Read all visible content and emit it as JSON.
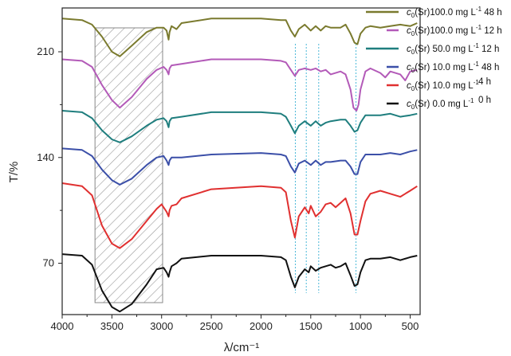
{
  "chart_data": {
    "type": "line",
    "xlabel": "λ/cm⁻¹",
    "ylabel": "T/%",
    "xlim": [
      4000,
      400
    ],
    "ylim": [
      36,
      239
    ],
    "x_ticks": [
      {
        "value": 4000,
        "label": "4000"
      },
      {
        "value": 3500,
        "label": "3500"
      },
      {
        "value": 3000,
        "label": "3000"
      },
      {
        "value": 2500,
        "label": "2500"
      },
      {
        "value": 2000,
        "label": "2000"
      },
      {
        "value": 1500,
        "label": "1500"
      },
      {
        "value": 1000,
        "label": "1000"
      },
      {
        "value": 500,
        "label": "500"
      }
    ],
    "y_ticks": [
      {
        "value": 70,
        "label": "70"
      },
      {
        "value": 140,
        "label": "140"
      },
      {
        "value": 210,
        "label": "210"
      }
    ],
    "hatched_region": {
      "x_from": 3670,
      "x_to": 2990
    },
    "dotted_lines": [
      1655,
      1545,
      1420,
      1045
    ],
    "series": [
      {
        "name": "c0(Sr)100.0 mg L-1 48 h",
        "legend": {
          "label": "(Sr)100.0 mg L",
          "unit_tail": " 48 h",
          "time": ""
        },
        "color": "#7a7a2e",
        "offset": 232,
        "points": [
          [
            4000,
            0
          ],
          [
            3800,
            -1
          ],
          [
            3700,
            -4
          ],
          [
            3600,
            -12
          ],
          [
            3500,
            -22
          ],
          [
            3420,
            -25
          ],
          [
            3300,
            -18
          ],
          [
            3150,
            -9
          ],
          [
            3050,
            -6
          ],
          [
            2980,
            -6
          ],
          [
            2950,
            -8
          ],
          [
            2930,
            -14
          ],
          [
            2920,
            -9
          ],
          [
            2900,
            -5
          ],
          [
            2850,
            -7
          ],
          [
            2800,
            -3
          ],
          [
            2500,
            0
          ],
          [
            2000,
            0
          ],
          [
            1800,
            -1
          ],
          [
            1750,
            -1
          ],
          [
            1700,
            -8
          ],
          [
            1660,
            -12
          ],
          [
            1620,
            -7
          ],
          [
            1560,
            -4
          ],
          [
            1500,
            -8
          ],
          [
            1450,
            -5
          ],
          [
            1400,
            -8
          ],
          [
            1350,
            -5
          ],
          [
            1300,
            -6
          ],
          [
            1200,
            -6
          ],
          [
            1150,
            -4
          ],
          [
            1100,
            -10
          ],
          [
            1060,
            -16
          ],
          [
            1030,
            -17
          ],
          [
            1000,
            -10
          ],
          [
            950,
            -6
          ],
          [
            900,
            -5
          ],
          [
            800,
            -6
          ],
          [
            700,
            -5
          ],
          [
            600,
            -4
          ],
          [
            500,
            -5
          ],
          [
            430,
            -3
          ]
        ]
      },
      {
        "name": "c0(Sr)100.0 mg L-1 12 h",
        "legend": {
          "label": "(Sr)100.0 mg L",
          "unit_tail": " 12 h",
          "time": ""
        },
        "color": "#b35ab8",
        "offset": 205,
        "points": [
          [
            4000,
            0
          ],
          [
            3800,
            -1
          ],
          [
            3700,
            -5
          ],
          [
            3600,
            -17
          ],
          [
            3500,
            -27
          ],
          [
            3420,
            -32
          ],
          [
            3300,
            -25
          ],
          [
            3150,
            -13
          ],
          [
            3050,
            -7
          ],
          [
            2980,
            -5
          ],
          [
            2950,
            -7
          ],
          [
            2930,
            -10
          ],
          [
            2920,
            -6
          ],
          [
            2900,
            -4
          ],
          [
            2800,
            -3
          ],
          [
            2500,
            0
          ],
          [
            2000,
            0
          ],
          [
            1800,
            -1
          ],
          [
            1750,
            -2
          ],
          [
            1700,
            -7
          ],
          [
            1660,
            -11
          ],
          [
            1620,
            -7
          ],
          [
            1560,
            -6
          ],
          [
            1500,
            -7
          ],
          [
            1450,
            -6
          ],
          [
            1400,
            -8
          ],
          [
            1350,
            -7
          ],
          [
            1300,
            -10
          ],
          [
            1200,
            -8
          ],
          [
            1150,
            -10
          ],
          [
            1100,
            -20
          ],
          [
            1070,
            -32
          ],
          [
            1040,
            -34
          ],
          [
            1020,
            -30
          ],
          [
            1000,
            -20
          ],
          [
            950,
            -8
          ],
          [
            900,
            -6
          ],
          [
            800,
            -9
          ],
          [
            750,
            -12
          ],
          [
            700,
            -8
          ],
          [
            600,
            -10
          ],
          [
            550,
            -14
          ],
          [
            500,
            -8
          ],
          [
            430,
            -7
          ]
        ]
      },
      {
        "name": "c0(Sr) 50.0 mg L-1 12 h",
        "legend": {
          "label": "(Sr) 50.0 mg L",
          "unit_tail": " 12 h",
          "time": ""
        },
        "color": "#1f7e7e",
        "offset": 171,
        "points": [
          [
            4000,
            0
          ],
          [
            3800,
            -1
          ],
          [
            3700,
            -5
          ],
          [
            3600,
            -13
          ],
          [
            3500,
            -19
          ],
          [
            3420,
            -21
          ],
          [
            3300,
            -17
          ],
          [
            3150,
            -10
          ],
          [
            3050,
            -6
          ],
          [
            2980,
            -5
          ],
          [
            2950,
            -7
          ],
          [
            2930,
            -11
          ],
          [
            2920,
            -7
          ],
          [
            2900,
            -5
          ],
          [
            2800,
            -4
          ],
          [
            2500,
            -1
          ],
          [
            2000,
            -1
          ],
          [
            1800,
            -2
          ],
          [
            1750,
            -4
          ],
          [
            1700,
            -10
          ],
          [
            1660,
            -15
          ],
          [
            1620,
            -10
          ],
          [
            1560,
            -7
          ],
          [
            1500,
            -10
          ],
          [
            1450,
            -7
          ],
          [
            1400,
            -10
          ],
          [
            1350,
            -8
          ],
          [
            1300,
            -7
          ],
          [
            1200,
            -6
          ],
          [
            1150,
            -6
          ],
          [
            1100,
            -10
          ],
          [
            1060,
            -14
          ],
          [
            1030,
            -13
          ],
          [
            1000,
            -8
          ],
          [
            950,
            -3
          ],
          [
            900,
            -3
          ],
          [
            800,
            -3
          ],
          [
            700,
            -2
          ],
          [
            600,
            -4
          ],
          [
            500,
            -3
          ],
          [
            430,
            -2
          ]
        ]
      },
      {
        "name": "c0(Sr) 10.0 mg L-1 48 h",
        "legend": {
          "label": "(Sr) 10.0 mg L",
          "unit_tail": " 48 h",
          "time": ""
        },
        "color": "#3b4fa8",
        "offset": 146,
        "points": [
          [
            4000,
            0
          ],
          [
            3800,
            -1
          ],
          [
            3700,
            -5
          ],
          [
            3600,
            -14
          ],
          [
            3500,
            -21
          ],
          [
            3420,
            -24
          ],
          [
            3300,
            -20
          ],
          [
            3150,
            -11
          ],
          [
            3050,
            -6
          ],
          [
            2980,
            -5
          ],
          [
            2950,
            -8
          ],
          [
            2930,
            -11
          ],
          [
            2920,
            -8
          ],
          [
            2900,
            -6
          ],
          [
            2800,
            -6
          ],
          [
            2500,
            -4
          ],
          [
            2000,
            -3
          ],
          [
            1800,
            -4
          ],
          [
            1750,
            -5
          ],
          [
            1700,
            -12
          ],
          [
            1660,
            -16
          ],
          [
            1620,
            -10
          ],
          [
            1560,
            -8
          ],
          [
            1500,
            -11
          ],
          [
            1450,
            -8
          ],
          [
            1400,
            -11
          ],
          [
            1350,
            -9
          ],
          [
            1300,
            -9
          ],
          [
            1200,
            -8
          ],
          [
            1150,
            -8
          ],
          [
            1100,
            -12
          ],
          [
            1060,
            -17
          ],
          [
            1030,
            -17
          ],
          [
            1000,
            -9
          ],
          [
            950,
            -4
          ],
          [
            900,
            -4
          ],
          [
            800,
            -4
          ],
          [
            700,
            -3
          ],
          [
            600,
            -4
          ],
          [
            500,
            -2
          ],
          [
            430,
            -1
          ]
        ]
      },
      {
        "name": "c0(Sr) 10.0 mg L-1 4 h",
        "legend": {
          "label": "(Sr) 10.0 mg L",
          "unit_tail": "",
          "time": " 4 h"
        },
        "color": "#e03030",
        "offset": 123,
        "points": [
          [
            4000,
            0
          ],
          [
            3800,
            -2
          ],
          [
            3700,
            -8
          ],
          [
            3600,
            -28
          ],
          [
            3500,
            -40
          ],
          [
            3420,
            -43
          ],
          [
            3300,
            -37
          ],
          [
            3150,
            -25
          ],
          [
            3050,
            -17
          ],
          [
            3000,
            -14
          ],
          [
            2980,
            -16
          ],
          [
            2950,
            -19
          ],
          [
            2930,
            -22
          ],
          [
            2920,
            -18
          ],
          [
            2900,
            -15
          ],
          [
            2850,
            -14
          ],
          [
            2800,
            -10
          ],
          [
            2600,
            -6
          ],
          [
            2500,
            -4
          ],
          [
            2000,
            -2
          ],
          [
            1800,
            -3
          ],
          [
            1750,
            -6
          ],
          [
            1700,
            -25
          ],
          [
            1660,
            -36
          ],
          [
            1620,
            -22
          ],
          [
            1560,
            -16
          ],
          [
            1520,
            -20
          ],
          [
            1500,
            -15
          ],
          [
            1450,
            -22
          ],
          [
            1400,
            -19
          ],
          [
            1350,
            -14
          ],
          [
            1300,
            -13
          ],
          [
            1250,
            -16
          ],
          [
            1200,
            -13
          ],
          [
            1150,
            -10
          ],
          [
            1100,
            -20
          ],
          [
            1060,
            -34
          ],
          [
            1030,
            -34
          ],
          [
            1000,
            -25
          ],
          [
            950,
            -12
          ],
          [
            900,
            -7
          ],
          [
            800,
            -5
          ],
          [
            700,
            -7
          ],
          [
            600,
            -9
          ],
          [
            500,
            -5
          ],
          [
            430,
            -2
          ]
        ]
      },
      {
        "name": "c0(Sr) 0.0 mg L-1 0 h",
        "legend": {
          "label": "(Sr)   0.0 mg L",
          "unit_tail": "",
          "time": " 0 h"
        },
        "color": "#111111",
        "offset": 76,
        "points": [
          [
            4000,
            0
          ],
          [
            3800,
            -1
          ],
          [
            3700,
            -7
          ],
          [
            3600,
            -24
          ],
          [
            3500,
            -35
          ],
          [
            3420,
            -38
          ],
          [
            3300,
            -33
          ],
          [
            3150,
            -20
          ],
          [
            3050,
            -10
          ],
          [
            2980,
            -9
          ],
          [
            2950,
            -12
          ],
          [
            2930,
            -15
          ],
          [
            2920,
            -12
          ],
          [
            2900,
            -8
          ],
          [
            2850,
            -6
          ],
          [
            2800,
            -3
          ],
          [
            2500,
            -1
          ],
          [
            2000,
            -1
          ],
          [
            1800,
            -2
          ],
          [
            1750,
            -4
          ],
          [
            1700,
            -15
          ],
          [
            1660,
            -22
          ],
          [
            1620,
            -15
          ],
          [
            1560,
            -10
          ],
          [
            1520,
            -12
          ],
          [
            1500,
            -8
          ],
          [
            1450,
            -11
          ],
          [
            1400,
            -9
          ],
          [
            1350,
            -8
          ],
          [
            1300,
            -7
          ],
          [
            1250,
            -9
          ],
          [
            1200,
            -8
          ],
          [
            1150,
            -6
          ],
          [
            1100,
            -14
          ],
          [
            1060,
            -21
          ],
          [
            1030,
            -20
          ],
          [
            1000,
            -12
          ],
          [
            950,
            -4
          ],
          [
            900,
            -3
          ],
          [
            800,
            -3
          ],
          [
            700,
            -2
          ],
          [
            600,
            -4
          ],
          [
            500,
            -2
          ],
          [
            430,
            -1
          ]
        ]
      }
    ]
  }
}
